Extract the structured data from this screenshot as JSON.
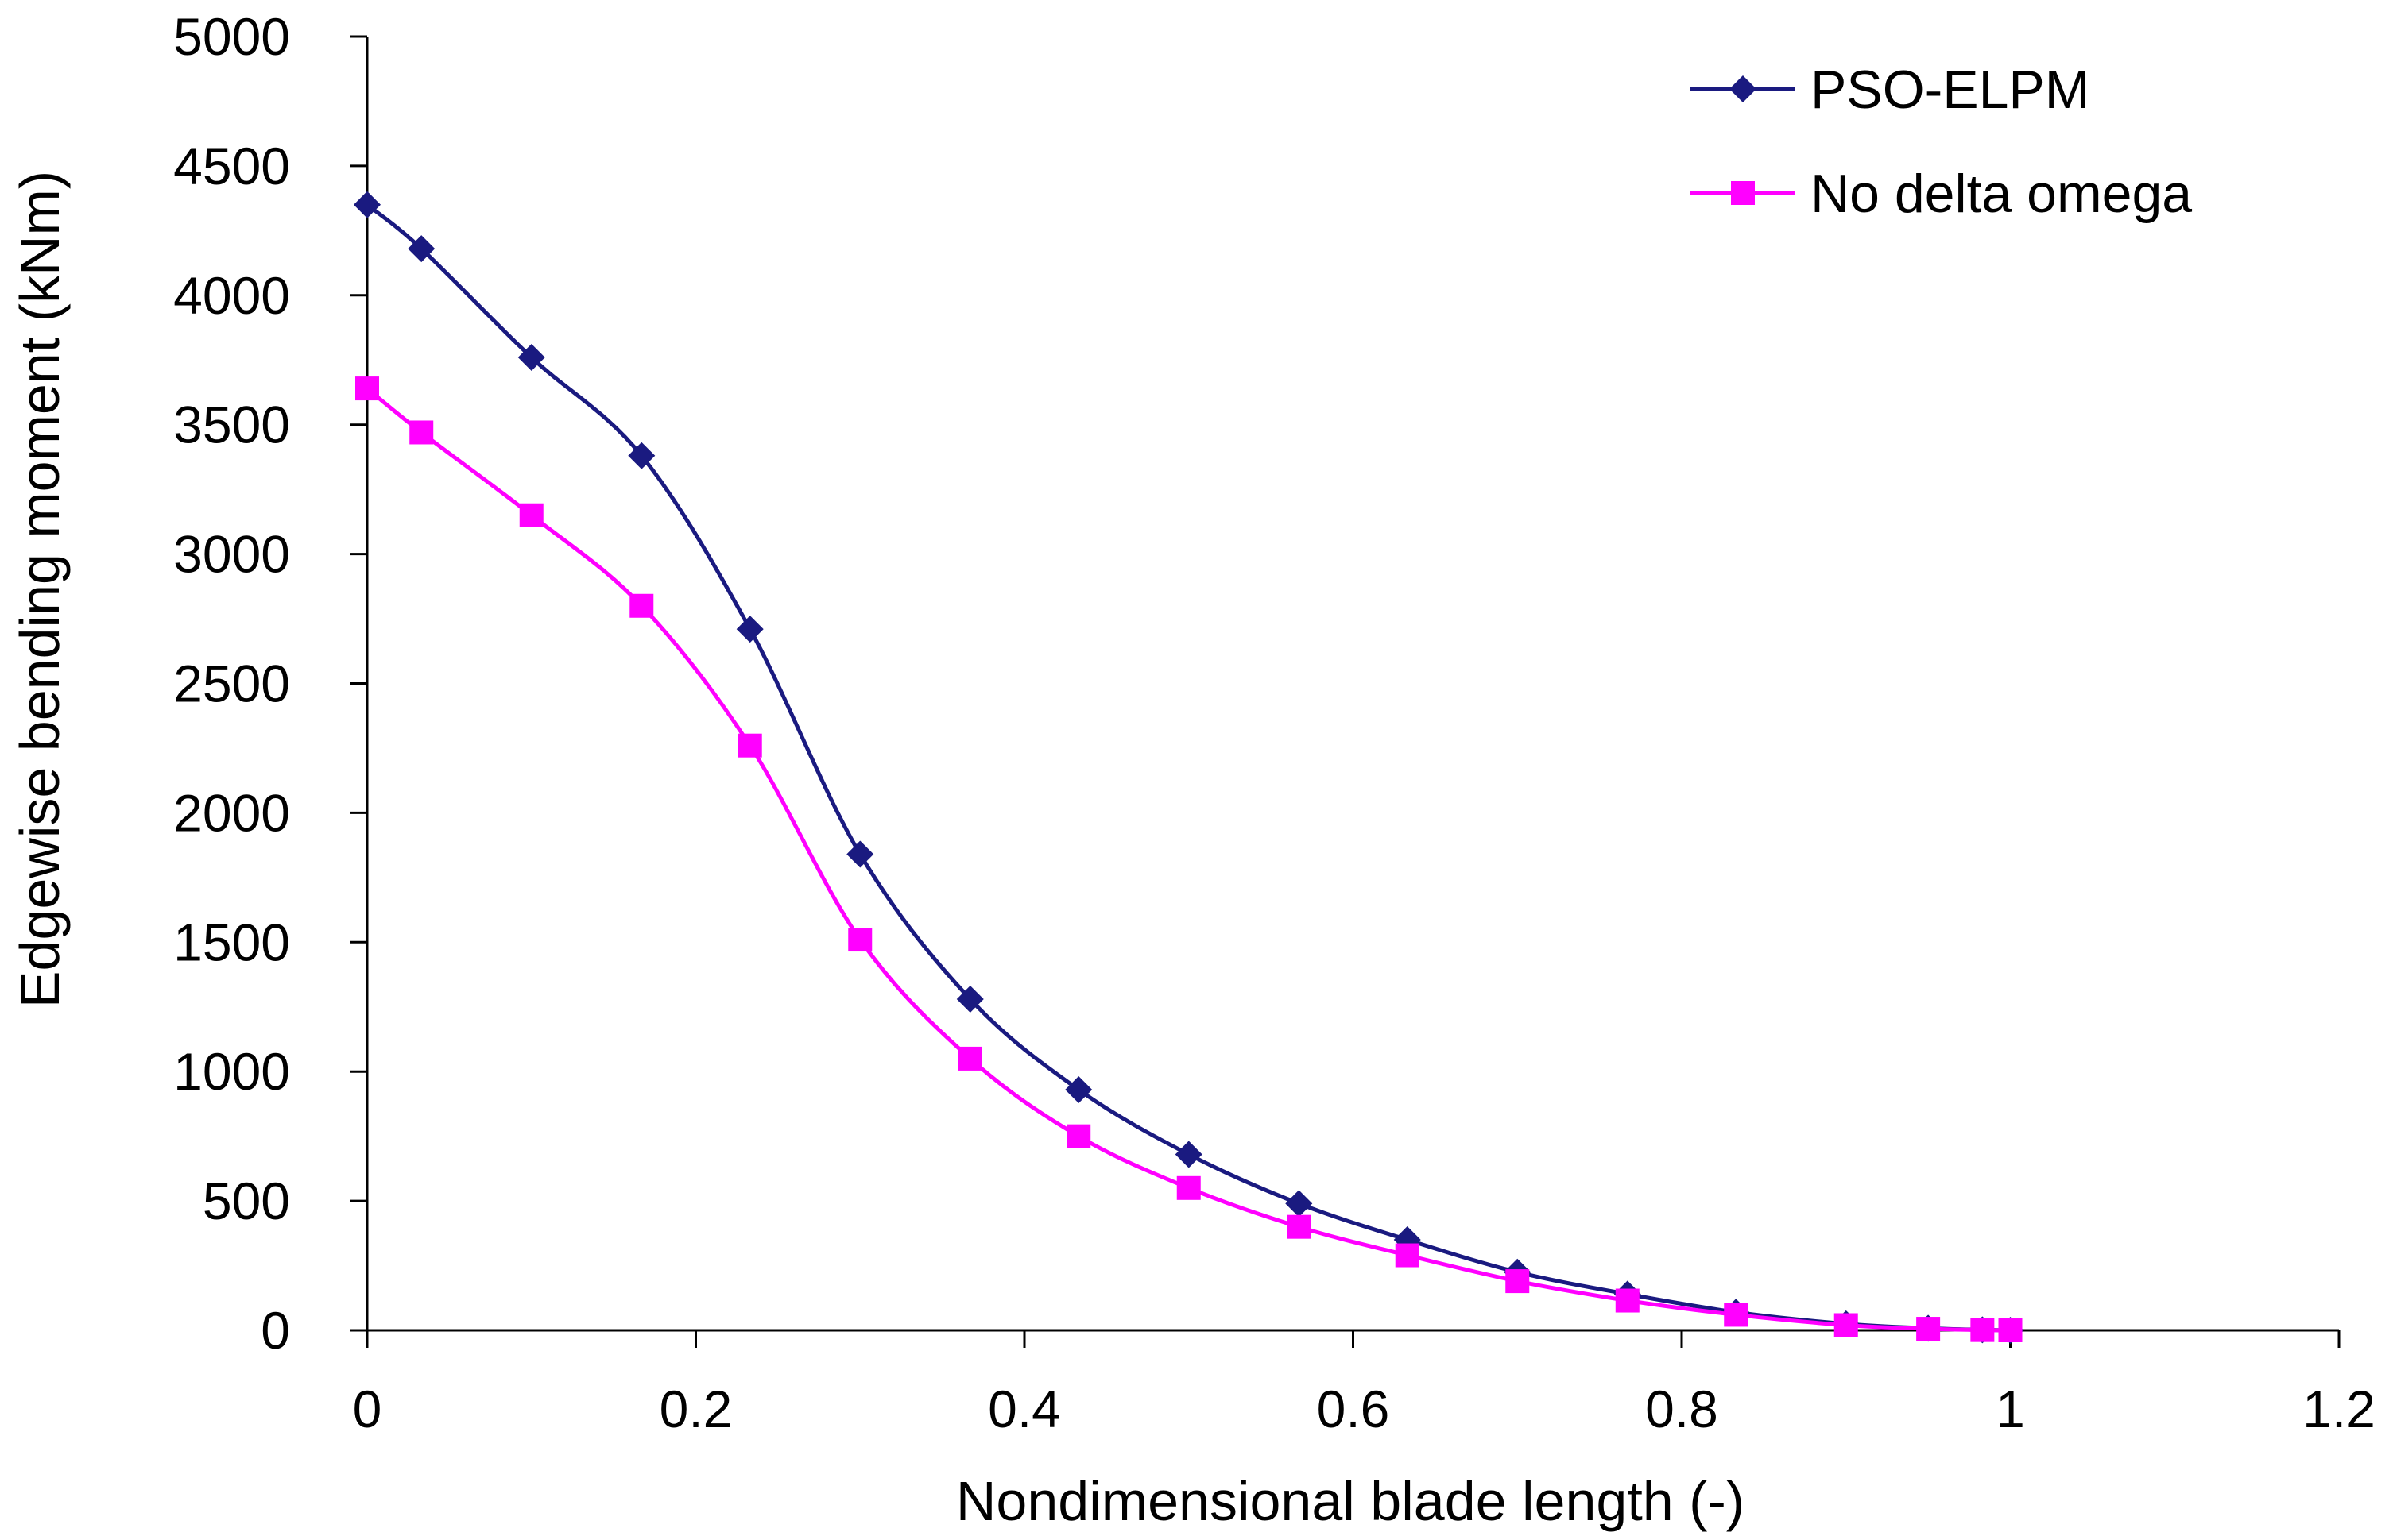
{
  "chart_data": {
    "type": "line",
    "title": "",
    "xlabel": "Nondimensional blade length (-)",
    "ylabel": "Edgewise bending moment (kNm)",
    "xlim": [
      0,
      1.2
    ],
    "ylim": [
      0,
      5000
    ],
    "x_ticks": [
      0,
      0.2,
      0.4,
      0.6,
      0.8,
      1,
      1.2
    ],
    "y_ticks": [
      0,
      500,
      1000,
      1500,
      2000,
      2500,
      3000,
      3500,
      4000,
      4500,
      5000
    ],
    "x_tick_labels": [
      "0",
      "0.2",
      "0.4",
      "0.6",
      "0.8",
      "1",
      "1.2"
    ],
    "y_tick_labels": [
      "0",
      "500",
      "1000",
      "1500",
      "2000",
      "2500",
      "3000",
      "3500",
      "4000",
      "4500",
      "5000"
    ],
    "grid": false,
    "legend_position": "top-right",
    "series": [
      {
        "name": "PSO-ELPM",
        "color": "#1a1a80",
        "marker": "diamond",
        "x": [
          0,
          0.033,
          0.1,
          0.167,
          0.233,
          0.3,
          0.367,
          0.433,
          0.5,
          0.567,
          0.633,
          0.7,
          0.767,
          0.833,
          0.9,
          0.95,
          0.983,
          1.0
        ],
        "y": [
          4350,
          4180,
          3760,
          3380,
          2710,
          1840,
          1280,
          930,
          680,
          490,
          350,
          225,
          140,
          70,
          25,
          8,
          2,
          0
        ]
      },
      {
        "name": "No delta omega",
        "color": "#ff00ff",
        "marker": "square",
        "x": [
          0,
          0.033,
          0.1,
          0.167,
          0.233,
          0.3,
          0.367,
          0.433,
          0.5,
          0.567,
          0.633,
          0.7,
          0.767,
          0.833,
          0.9,
          0.95,
          0.983,
          1.0
        ],
        "y": [
          3640,
          3470,
          3150,
          2800,
          2260,
          1510,
          1050,
          750,
          550,
          400,
          290,
          190,
          115,
          60,
          20,
          6,
          1,
          0
        ]
      }
    ]
  }
}
